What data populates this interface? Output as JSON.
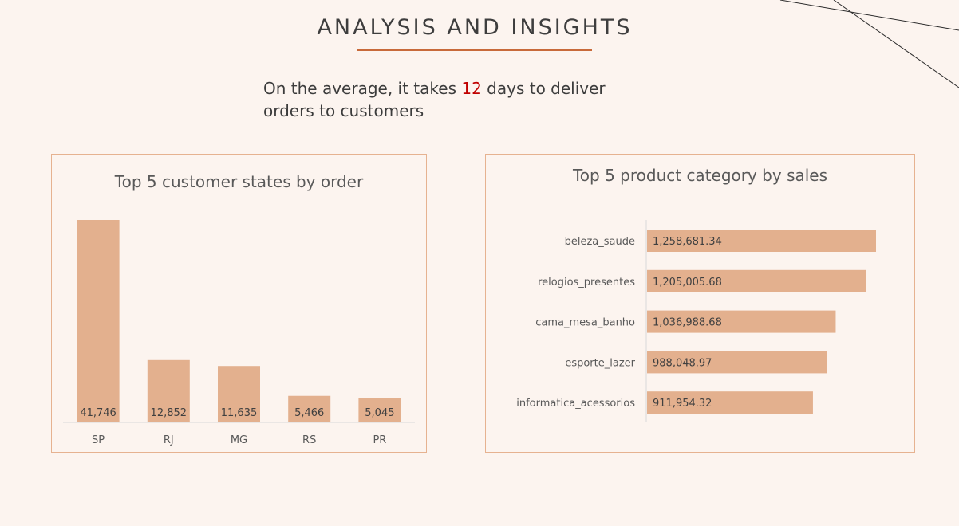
{
  "page": {
    "title": "ANALYSIS AND INSIGHTS",
    "insight_prefix": "On the average, it takes ",
    "insight_number": "12",
    "insight_suffix": " days to deliver orders to customers"
  },
  "colors": {
    "background": "#fcf4ef",
    "bar": "#e3b08e",
    "accent_rule": "#c86a3a",
    "highlight": "#c00000",
    "panel_border": "#e6b290"
  },
  "chart_data": [
    {
      "type": "bar",
      "title": "Top 5 customer states by order",
      "categories": [
        "SP",
        "RJ",
        "MG",
        "RS",
        "PR"
      ],
      "values": [
        41746,
        12852,
        11635,
        5466,
        5045
      ],
      "value_labels": [
        "41,746",
        "12,852",
        "11,635",
        "5,466",
        "5,045"
      ],
      "xlabel": "",
      "ylabel": "",
      "grid": false,
      "legend": "none"
    },
    {
      "type": "bar",
      "orientation": "horizontal",
      "title": "Top 5 product category by sales",
      "categories": [
        "beleza_saude",
        "relogios_presentes",
        "cama_mesa_banho",
        "esporte_lazer",
        "informatica_acessorios"
      ],
      "values": [
        1258681.34,
        1205005.68,
        1036988.68,
        988048.97,
        911954.32
      ],
      "value_labels": [
        "1,258,681.34",
        "1,205,005.68",
        "1,036,988.68",
        "988,048.97",
        "911,954.32"
      ],
      "xlabel": "",
      "ylabel": "",
      "grid": false,
      "legend": "none"
    }
  ]
}
